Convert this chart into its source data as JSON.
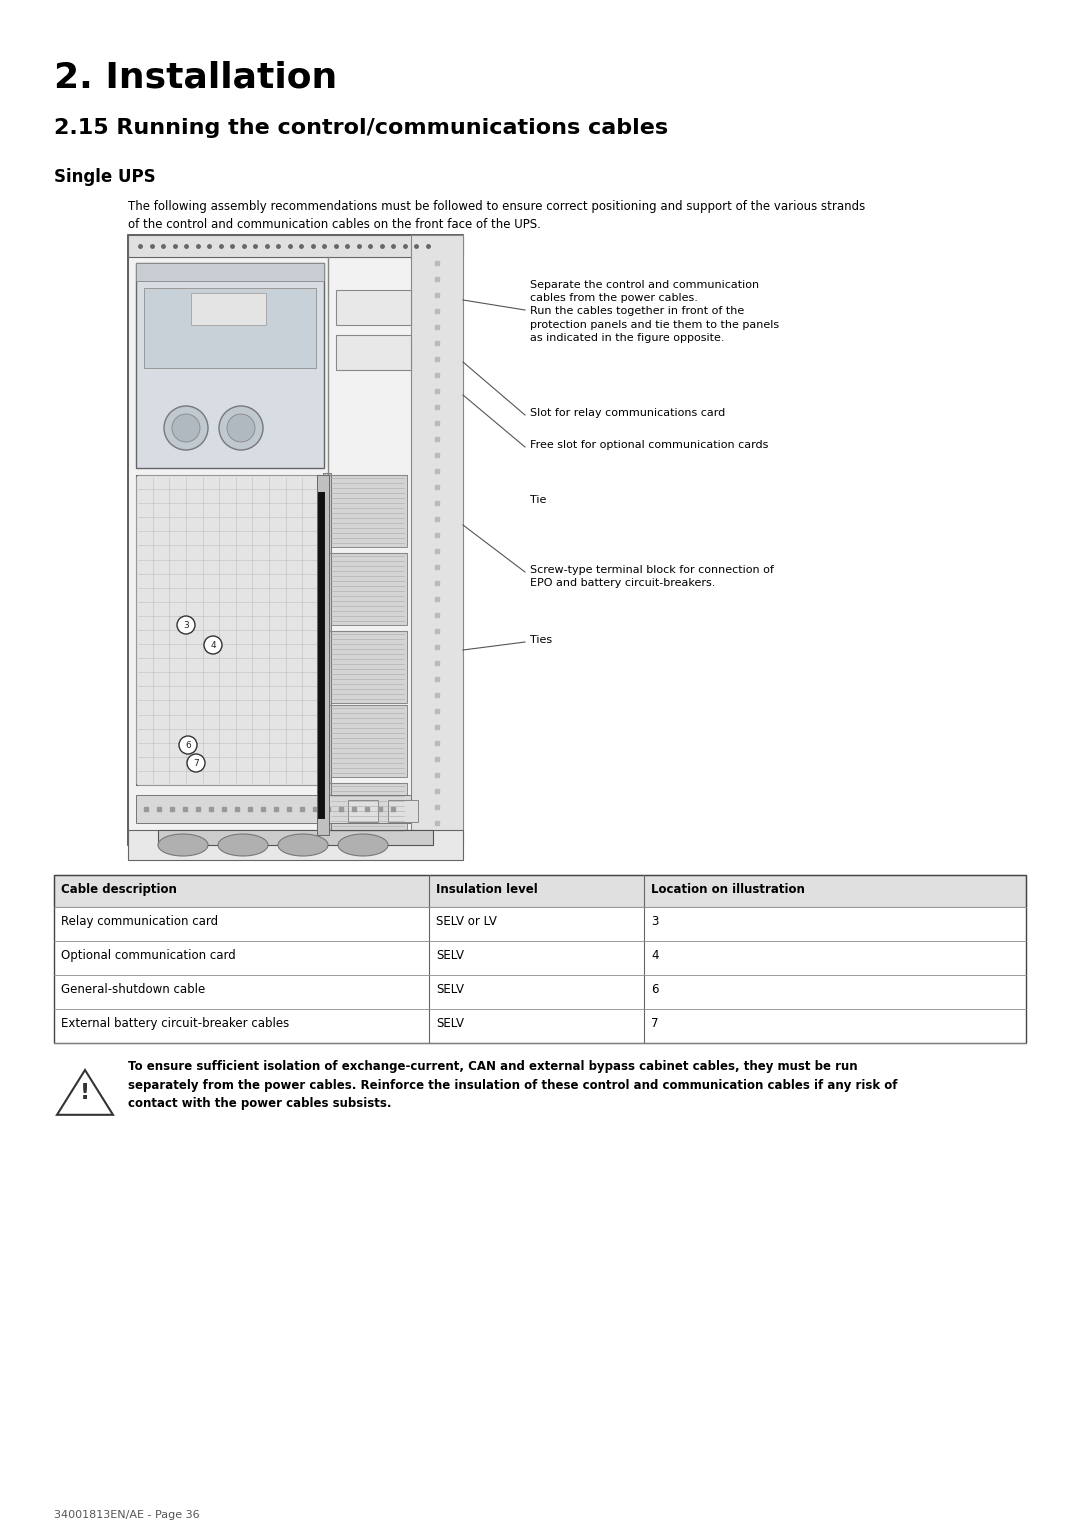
{
  "title1": "2. Installation",
  "title2_text": "2.15 Running the control/communications cables",
  "subtitle": "Single UPS",
  "intro_text": "The following assembly recommendations must be followed to ensure correct positioning and support of the various strands\nof the control and communication cables on the front face of the UPS.",
  "annotation1": "Separate the control and communication\ncables from the power cables.\nRun the cables together in front of the\nprotection panels and tie them to the panels\nas indicated in the figure opposite.",
  "annotation2": "Slot for relay communications card",
  "annotation3": "Free slot for optional communication cards",
  "annotation4": "Tie",
  "annotation5": "Screw-type terminal block for connection of\nEPO and battery circuit-breakers.",
  "annotation6": "Ties",
  "table_headers": [
    "Cable description",
    "Insulation level",
    "Location on illustration"
  ],
  "table_rows": [
    [
      "Relay communication card",
      "SELV or LV",
      "3"
    ],
    [
      "Optional communication card",
      "SELV",
      "4"
    ],
    [
      "General-shutdown cable",
      "SELV",
      "6"
    ],
    [
      "External battery circuit-breaker cables",
      "SELV",
      "7"
    ]
  ],
  "warning_text": "To ensure sufficient isolation of exchange-current, CAN and external bypass cabinet cables, they must be run\nseparately from the power cables. Reinforce the insulation of these control and communication cables if any risk of\ncontact with the power cables subsists.",
  "footer": "34001813EN/AE - Page 36",
  "bg_color": "#ffffff",
  "text_color": "#000000"
}
